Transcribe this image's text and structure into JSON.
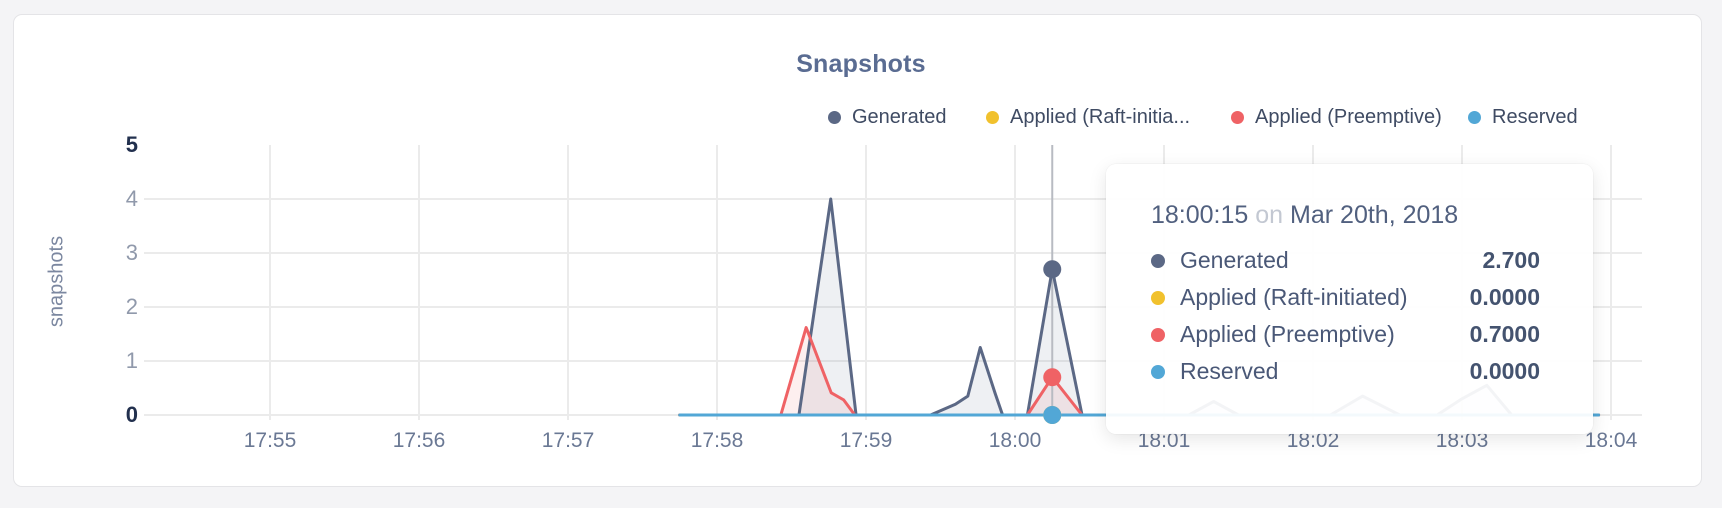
{
  "chart_data": {
    "type": "area",
    "title": "Snapshots",
    "ylabel": "snapshots",
    "xlabel": "",
    "y_ticks": [
      0,
      1,
      2,
      3,
      4,
      5
    ],
    "ylim": [
      0,
      5
    ],
    "x_tick_labels": [
      "17:55",
      "17:56",
      "17:57",
      "17:58",
      "17:59",
      "18:00",
      "18:01",
      "18:02",
      "18:03",
      "18:04"
    ],
    "time_origin": "17:55:00",
    "grid": true,
    "legend_position": "top-right",
    "series": [
      {
        "name": "Generated",
        "color": "#5b6885",
        "fill": "rgba(91,104,133,0.10)",
        "points": [
          [
            165,
            0
          ],
          [
            213,
            0
          ],
          [
            225.8,
            4.0
          ],
          [
            236,
            0
          ],
          [
            266,
            0
          ],
          [
            276,
            0.2
          ],
          [
            281,
            0.35
          ],
          [
            286,
            1.25
          ],
          [
            292,
            0.4
          ],
          [
            295,
            0
          ],
          [
            305,
            0
          ],
          [
            315,
            2.7
          ],
          [
            327,
            0
          ],
          [
            370,
            0
          ],
          [
            380,
            0.25
          ],
          [
            390,
            0
          ],
          [
            427,
            0
          ],
          [
            440,
            0.35
          ],
          [
            455,
            0
          ],
          [
            470,
            0
          ],
          [
            480,
            0.3
          ],
          [
            490,
            0.55
          ],
          [
            500,
            0
          ],
          [
            535,
            0
          ]
        ]
      },
      {
        "name": "Applied (Raft-initiated)",
        "color": "#f1c12d",
        "fill": "none",
        "points": [
          [
            165,
            0
          ],
          [
            535,
            0
          ]
        ]
      },
      {
        "name": "Applied (Preemptive)",
        "color": "#ef6265",
        "fill": "rgba(239,98,101,0.10)",
        "points": [
          [
            165,
            0
          ],
          [
            205.7,
            0
          ],
          [
            215.9,
            1.62
          ],
          [
            226,
            0.41
          ],
          [
            231,
            0.28
          ],
          [
            235.5,
            0
          ],
          [
            305,
            0
          ],
          [
            315,
            0.7
          ],
          [
            327,
            0
          ],
          [
            535,
            0
          ]
        ]
      },
      {
        "name": "Reserved",
        "color": "#52a7d6",
        "fill": "none",
        "points": [
          [
            165,
            0
          ],
          [
            535,
            0
          ]
        ]
      }
    ],
    "hover": {
      "time_s": 315,
      "line_color": "#b8bbc2",
      "dots": [
        {
          "series": "Generated",
          "value": 2.7
        },
        {
          "series": "Applied (Raft-initiated)",
          "value": 0
        },
        {
          "series": "Applied (Preemptive)",
          "value": 0.7
        },
        {
          "series": "Reserved",
          "value": 0
        }
      ]
    }
  },
  "legend": {
    "items": [
      {
        "label": "Generated",
        "color": "#5b6885"
      },
      {
        "label": "Applied (Raft-initia...",
        "color": "#f1c12d"
      },
      {
        "label": "Applied (Preemptive)",
        "color": "#ef6265"
      },
      {
        "label": "Reserved",
        "color": "#52a7d6"
      }
    ]
  },
  "tooltip": {
    "time": "18:00:15",
    "conj": "on",
    "date": "Mar 20th, 2018",
    "rows": [
      {
        "label": "Generated",
        "value": "2.700",
        "color": "#5b6885"
      },
      {
        "label": "Applied (Raft-initiated)",
        "value": "0.0000",
        "color": "#f1c12d"
      },
      {
        "label": "Applied (Preemptive)",
        "value": "0.7000",
        "color": "#ef6265"
      },
      {
        "label": "Reserved",
        "value": "0.0000",
        "color": "#52a7d6"
      }
    ]
  },
  "colors": {
    "page_bg": "#f4f4f6",
    "card_bg": "#ffffff",
    "grid": "#ebebeb",
    "title": "#5a6c92",
    "axis_mid": "#9099ab",
    "axis_end": "#22304e",
    "xtick": "#6a7894",
    "hover_line": "#b8bbc2"
  }
}
